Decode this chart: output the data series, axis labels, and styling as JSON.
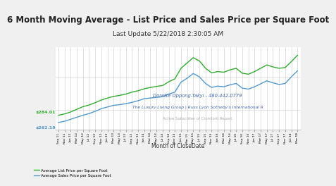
{
  "title": "6 Month Moving Average - List Price and Sales Price per Square Foot",
  "subtitle": "Last Update 5/22/2018 2:30:05 AM",
  "xlabel": "Month of CloseDate",
  "agent_name": "Dorette Oppong-Takyi - 480-442-0779",
  "agent_company": "The Luxury Living Group | Russ Lyon Sotheby's International R",
  "agent_sub": "Active Subscriber of Cromford Report",
  "legend_list": [
    "Average List Price per Square Foot",
    "Average Sales Price per Square Foot"
  ],
  "list_color": "#33aa33",
  "sales_color": "#5599cc",
  "start_list_label": "$284.01",
  "start_sales_label": "$262.19",
  "background_color": "#f0f0f0",
  "header_color": "#e8e8e8",
  "plot_bg": "#ffffff",
  "title_fontsize": 8.5,
  "subtitle_fontsize": 6.5,
  "tick_labels": [
    "Sep 11",
    "Nov 11",
    "Jan 12",
    "Mar 12",
    "May 12",
    "Jul 12",
    "Sep 12",
    "Nov 12",
    "Jan 13",
    "Mar 13",
    "May 13",
    "Jul 13",
    "Sep 13",
    "Nov 13",
    "Jan 14",
    "Mar 14",
    "May 14",
    "Jul 14",
    "Sep 14",
    "Nov 14",
    "Jan 15",
    "Mar 15",
    "May 15",
    "Jul 15",
    "Sep 15",
    "Nov 15",
    "Jan 16",
    "Mar 16",
    "May 16",
    "Jul 16",
    "Sep 16",
    "Nov 16",
    "Jan 17",
    "Mar 17",
    "May 17",
    "Jul 17",
    "Sep 17",
    "Nov 17",
    "Jan 18",
    "Mar 18"
  ],
  "list_values": [
    284.01,
    288,
    294,
    302,
    310,
    315,
    322,
    330,
    336,
    341,
    344,
    348,
    354,
    358,
    364,
    368,
    371,
    374,
    385,
    394,
    426,
    442,
    458,
    448,
    426,
    412,
    416,
    414,
    421,
    426,
    411,
    408,
    416,
    426,
    436,
    430,
    426,
    428,
    446,
    465
  ],
  "sales_values": [
    262.19,
    266,
    272,
    278,
    284,
    289,
    296,
    304,
    309,
    314,
    316,
    319,
    323,
    328,
    334,
    336,
    338,
    340,
    348,
    354,
    384,
    396,
    410,
    400,
    380,
    368,
    372,
    370,
    376,
    380,
    366,
    363,
    370,
    379,
    388,
    382,
    377,
    380,
    400,
    418
  ]
}
